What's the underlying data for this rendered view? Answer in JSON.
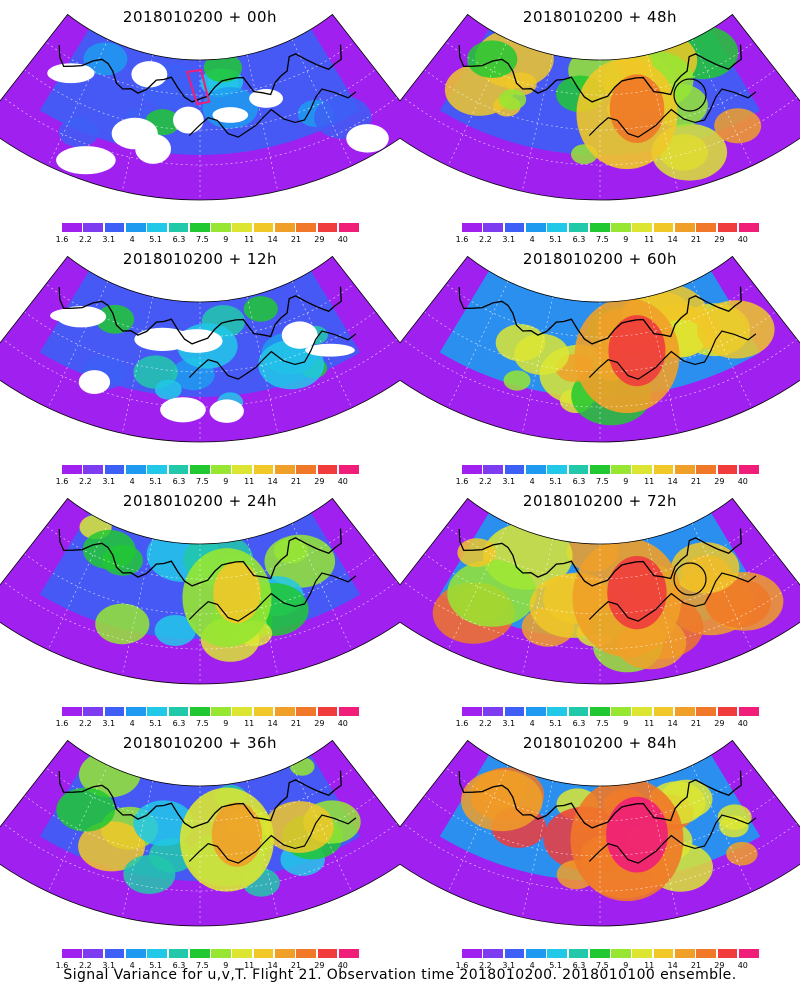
{
  "footer": "Signal Variance for u,v,T. Flight 21. Observation time 2018010200. 2018010100 ensemble.",
  "colorbar": {
    "colors": [
      "#a020f0",
      "#7d3cf0",
      "#3d5ff5",
      "#1e9bf0",
      "#22c8e8",
      "#22c8aa",
      "#22c832",
      "#96e632",
      "#dce632",
      "#f0c828",
      "#f0a028",
      "#f07828",
      "#f03c3c",
      "#f01e78"
    ],
    "labels": [
      "1.6",
      "2.2",
      "3.1",
      "4",
      "5.1",
      "6.3",
      "7.5",
      "9",
      "11",
      "14",
      "21",
      "29",
      "40"
    ]
  },
  "panels": [
    {
      "title": "2018010200 + 00h",
      "col": 0,
      "row": 0,
      "level": 0.1,
      "white_gaps": true,
      "box": true,
      "circle": false
    },
    {
      "title": "2018010200 + 12h",
      "col": 0,
      "row": 1,
      "level": 0.22,
      "white_gaps": true,
      "box": false,
      "circle": false
    },
    {
      "title": "2018010200 + 24h",
      "col": 0,
      "row": 2,
      "level": 0.38,
      "white_gaps": false,
      "box": false,
      "circle": false
    },
    {
      "title": "2018010200 + 36h",
      "col": 0,
      "row": 3,
      "level": 0.48,
      "white_gaps": false,
      "box": false,
      "circle": false
    },
    {
      "title": "2018010200 + 48h",
      "col": 1,
      "row": 0,
      "level": 0.62,
      "white_gaps": false,
      "box": false,
      "circle": true
    },
    {
      "title": "2018010200 + 60h",
      "col": 1,
      "row": 1,
      "level": 0.7,
      "white_gaps": false,
      "box": false,
      "circle": false
    },
    {
      "title": "2018010200 + 72h",
      "col": 1,
      "row": 2,
      "level": 0.78,
      "white_gaps": false,
      "box": false,
      "circle": true
    },
    {
      "title": "2018010200 + 84h",
      "col": 1,
      "row": 3,
      "level": 0.86,
      "white_gaps": false,
      "box": false,
      "circle": false
    }
  ]
}
